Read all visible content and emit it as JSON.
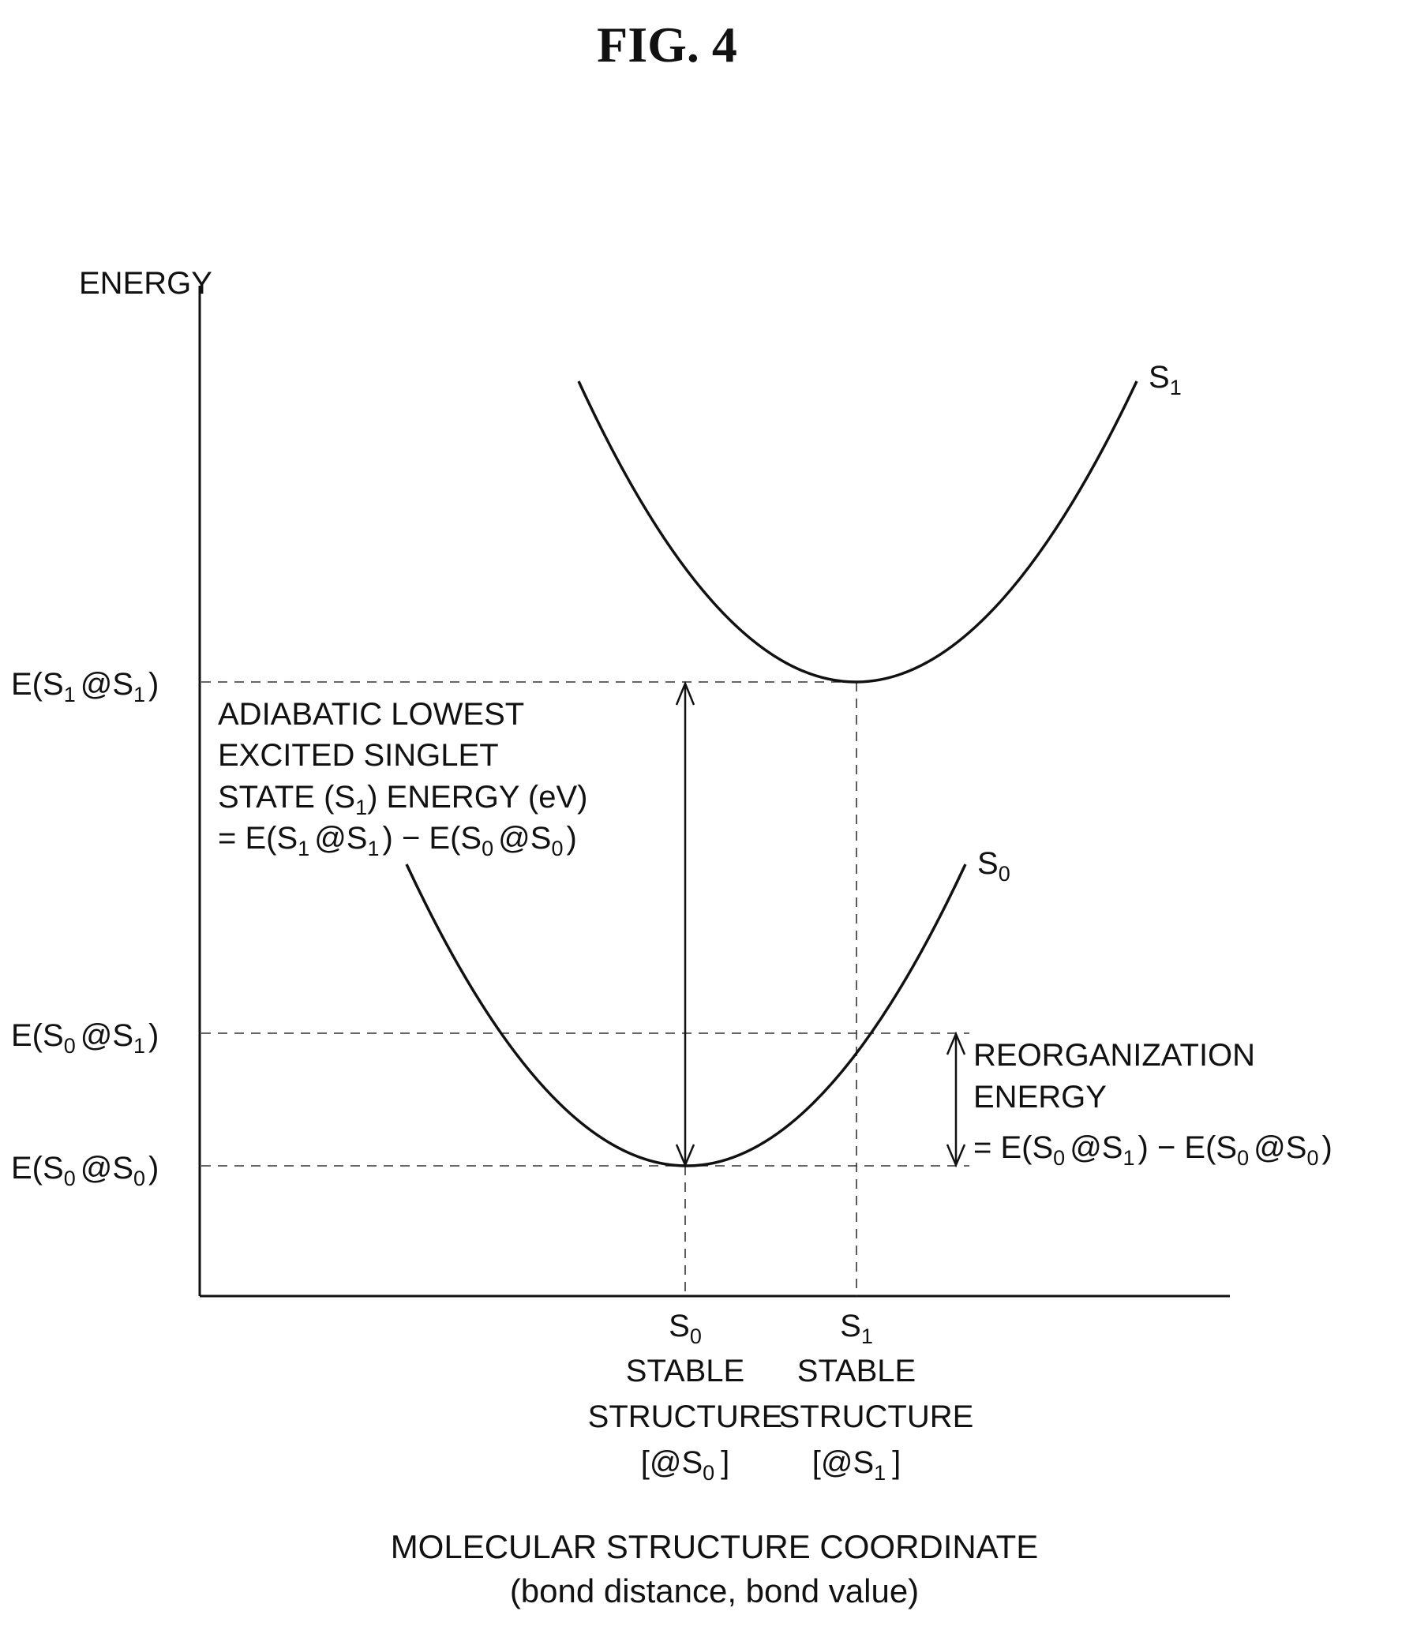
{
  "figure": {
    "title": "FIG. 4"
  },
  "axes": {
    "y_label": "ENERGY",
    "x_label_line1": "MOLECULAR STRUCTURE COORDINATE",
    "x_label_line2": "(bond distance, bond value)"
  },
  "curves": {
    "s1": {
      "letter": "S",
      "sub": "1"
    },
    "s0": {
      "letter": "S",
      "sub": "0"
    }
  },
  "energy_levels": {
    "s1_at_s1": {
      "p1": "E(S",
      "s1": "1",
      "p2": "@S",
      "s2": "1",
      "p3": ")"
    },
    "s0_at_s1": {
      "p1": "E(S",
      "s1": "0",
      "p2": "@S",
      "s2": "1",
      "p3": ")"
    },
    "s0_at_s0": {
      "p1": "E(S",
      "s1": "0",
      "p2": "@S",
      "s2": "0",
      "p3": ")"
    }
  },
  "adiabatic_note": {
    "line1": "ADIABATIC LOWEST",
    "line2": "EXCITED SINGLET",
    "line3": {
      "a": "STATE (S",
      "sub": "1",
      "b": ") ENERGY (eV)"
    },
    "line4": {
      "a": "= E(S",
      "s1": "1",
      "b": "@S",
      "s2": "1",
      "c": ") − E(S",
      "s3": "0",
      "d": "@S",
      "s4": "0",
      "e": ")"
    }
  },
  "reorganization_note": {
    "line1": "REORGANIZATION",
    "line2": "ENERGY",
    "line3": {
      "a": "= E(S",
      "s1": "0",
      "b": "@S",
      "s2": "1",
      "c": ") − E(S",
      "s3": "0",
      "d": "@S",
      "s4": "0",
      "e": ")"
    }
  },
  "x_ticks": {
    "s0": {
      "letter": "S",
      "sub": "0",
      "line2": "STABLE",
      "line3": "STRUCTURE",
      "l4a": "[@S",
      "l4sub": "0",
      "l4b": "]"
    },
    "s1": {
      "letter": "S",
      "sub": "1",
      "line2": "STABLE",
      "line3": "STRUCTURE",
      "l4a": "[@S",
      "l4sub": "1",
      "l4b": "]"
    }
  }
}
